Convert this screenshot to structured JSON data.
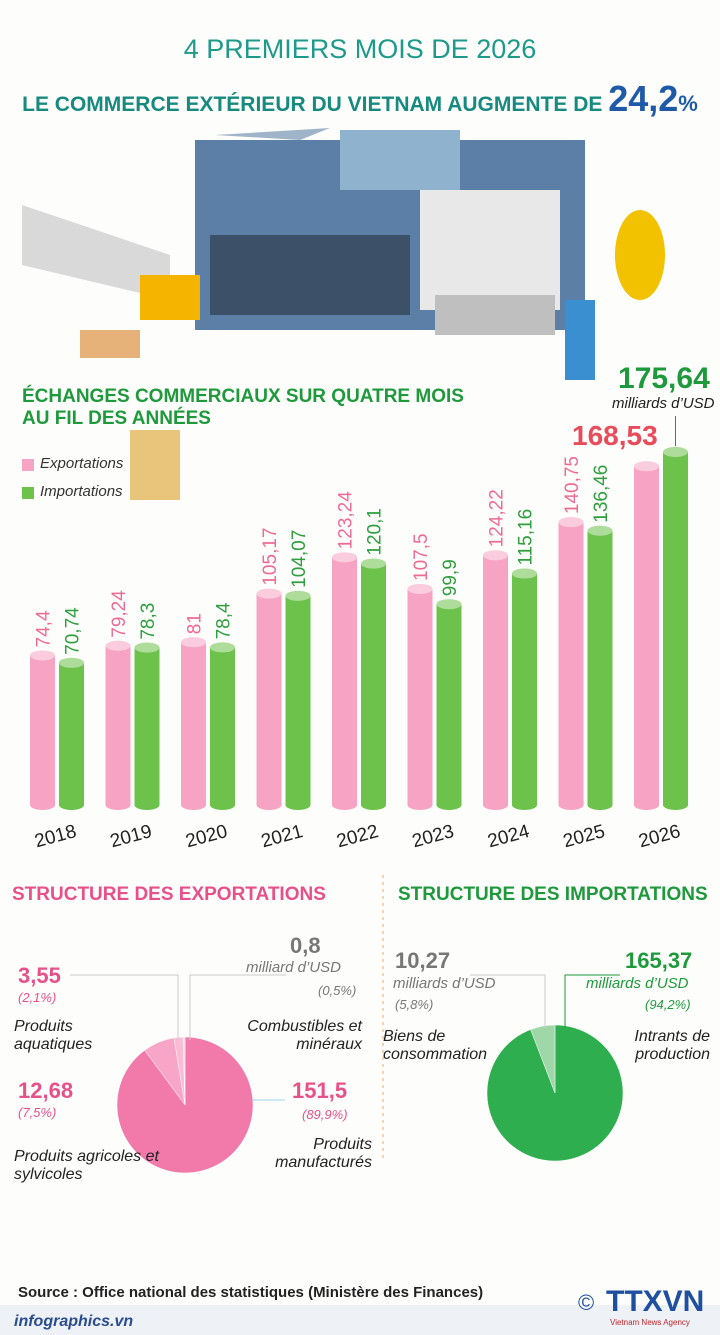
{
  "header": {
    "line1": "4 PREMIERS MOIS DE 2026",
    "line2": "LE COMMERCE EXTÉRIEUR DU VIETNAM AUGMENTE DE",
    "highlight": "24,2",
    "unit": "%"
  },
  "chart_data": [
    {
      "type": "bar",
      "title": "ÉCHANGES COMMERCIAUX SUR QUATRE MOIS AU FIL DES ANNÉES",
      "unit_label": "milliards d’USD",
      "categories": [
        "2018",
        "2019",
        "2020",
        "2021",
        "2022",
        "2023",
        "2024",
        "2025",
        "2026"
      ],
      "series": [
        {
          "name": "Exportations",
          "color": "#f7a3c4",
          "label_color": "#ee6a96",
          "values": [
            74.4,
            79.24,
            81,
            105.17,
            123.24,
            107.5,
            124.22,
            140.75,
            168.53
          ],
          "value_labels": [
            "74,4",
            "79,24",
            "81",
            "105,17",
            "123,24",
            "107,5",
            "124,22",
            "140,75",
            "168,53"
          ]
        },
        {
          "name": "Importations",
          "color": "#6cc24a",
          "label_color": "#2e9e3e",
          "values": [
            70.74,
            78.3,
            78.4,
            104.07,
            120.1,
            99.9,
            115.16,
            136.46,
            175.64
          ],
          "value_labels": [
            "70,74",
            "78,3",
            "78,4",
            "104,07",
            "120,1",
            "99,9",
            "115,16",
            "136,46",
            "175,64"
          ]
        }
      ]
    },
    {
      "type": "pie",
      "title": "STRUCTURE DES EXPORTATIONS",
      "categories": [
        "Produits manufacturés",
        "Produits agricoles et sylvicoles",
        "Produits aquatiques",
        "Combustibles et minéraux"
      ],
      "values": [
        151.5,
        12.68,
        3.55,
        0.8
      ],
      "value_labels": [
        "151,5",
        "12,68",
        "3,55",
        "0,8"
      ],
      "shares": [
        89.9,
        7.5,
        2.1,
        0.5
      ],
      "share_labels": [
        "(89,9%)",
        "(7,5%)",
        "(2,1%)",
        "(0,5%)"
      ],
      "units": [
        null,
        null,
        null,
        "milliard d’USD"
      ],
      "colors": [
        "#f27aab",
        "#f7a6c7",
        "#f9bcd4",
        "#fbd3e3"
      ]
    },
    {
      "type": "pie",
      "title": "STRUCTURE DES IMPORTATIONS",
      "categories": [
        "Intrants de production",
        "Biens de consommation"
      ],
      "values": [
        165.37,
        10.27
      ],
      "value_labels": [
        "165,37",
        "10,27"
      ],
      "shares": [
        94.2,
        5.8
      ],
      "share_labels": [
        "(94,2%)",
        "(5,8%)"
      ],
      "units": [
        "milliards d’USD",
        "milliards d’USD"
      ],
      "colors": [
        "#2fae4f",
        "#9fd7a8"
      ]
    }
  ],
  "source": "Source : Office national des statistiques (Ministère des Finances)",
  "footer": "infographics.vn",
  "copyright": "©",
  "logo": "TTXVN",
  "logo_sub": "Vietnam News Agency"
}
